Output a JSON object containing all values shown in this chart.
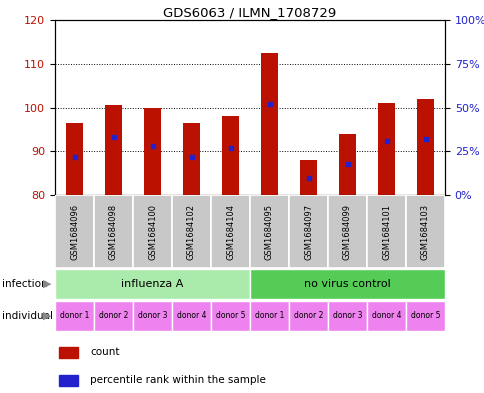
{
  "title": "GDS6063 / ILMN_1708729",
  "samples": [
    "GSM1684096",
    "GSM1684098",
    "GSM1684100",
    "GSM1684102",
    "GSM1684104",
    "GSM1684095",
    "GSM1684097",
    "GSM1684099",
    "GSM1684101",
    "GSM1684103"
  ],
  "counts": [
    96.5,
    100.5,
    100.0,
    96.5,
    98.0,
    112.5,
    88.0,
    94.0,
    101.0,
    102.0
  ],
  "percentiles": [
    22,
    33,
    28,
    22,
    27,
    52,
    10,
    18,
    31,
    32
  ],
  "ylim": [
    80,
    120
  ],
  "yticks_left": [
    80,
    90,
    100,
    110,
    120
  ],
  "yticks_right": [
    0,
    25,
    50,
    75,
    100
  ],
  "ytick_right_labels": [
    "0%",
    "25%",
    "50%",
    "75%",
    "100%"
  ],
  "infection_groups": [
    {
      "label": "influenza A",
      "start": 0,
      "end": 5,
      "color": "#AAEAAA"
    },
    {
      "label": "no virus control",
      "start": 5,
      "end": 10,
      "color": "#55CC55"
    }
  ],
  "individual_labels": [
    "donor 1",
    "donor 2",
    "donor 3",
    "donor 4",
    "donor 5",
    "donor 1",
    "donor 2",
    "donor 3",
    "donor 4",
    "donor 5"
  ],
  "individual_color": "#EE82EE",
  "bar_color": "#BB1100",
  "percentile_color": "#2222CC",
  "bar_width": 0.45,
  "background_color": "#ffffff",
  "grid_color": "#333333",
  "label_row1": "infection",
  "label_row2": "individual",
  "legend_count": "count",
  "legend_percentile": "percentile rank within the sample",
  "sample_bg_color": "#C8C8C8",
  "arrow_color": "#888888"
}
